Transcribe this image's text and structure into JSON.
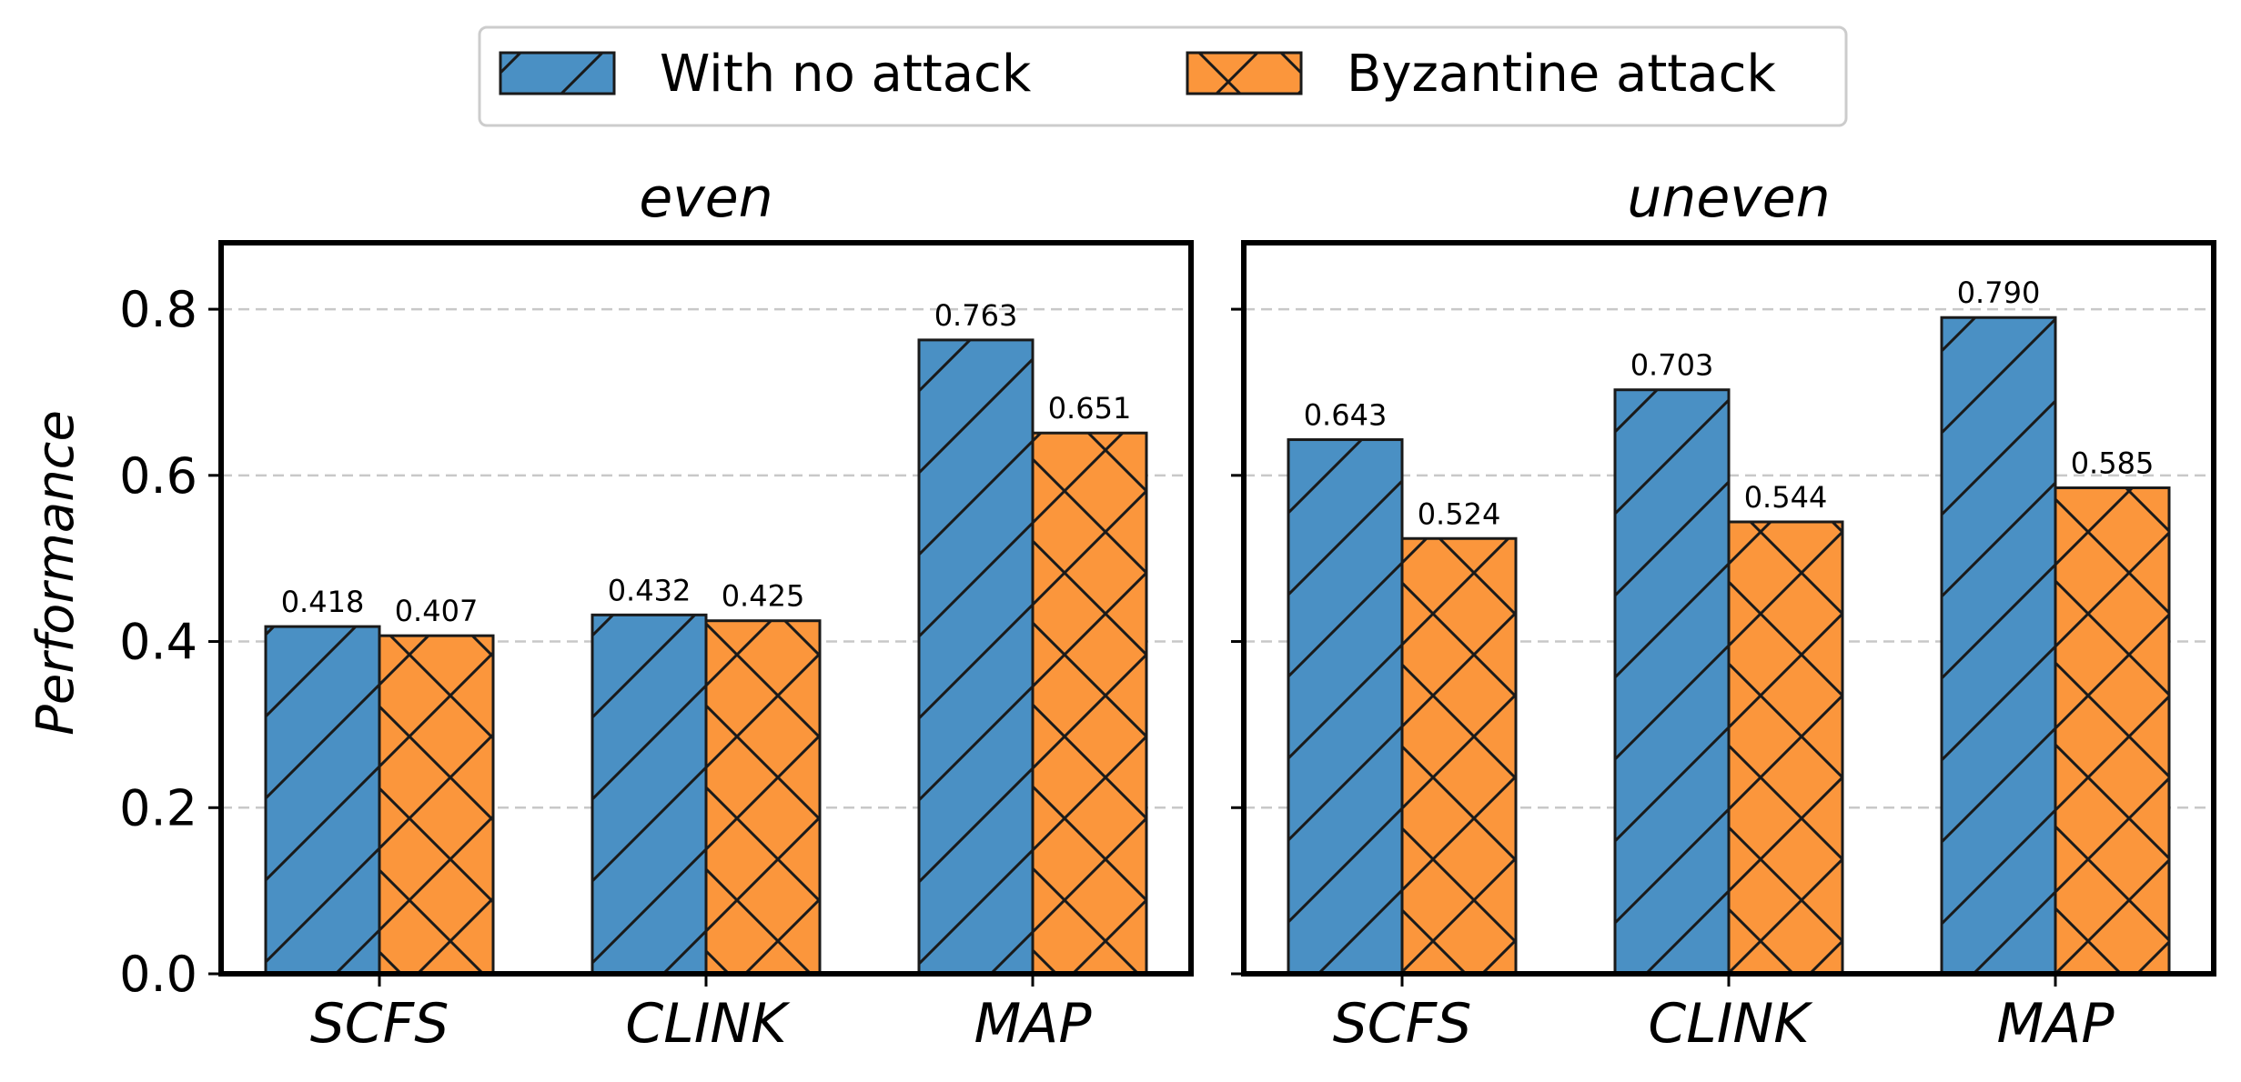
{
  "chart_data": {
    "type": "bar",
    "ylabel": "Performance",
    "ylim": [
      0,
      0.88
    ],
    "yticks": [
      "0.0",
      "0.2",
      "0.4",
      "0.6",
      "0.8"
    ],
    "grid": "horizontal dashed",
    "legend": {
      "placement": "top-center",
      "entries": [
        "With no attack",
        "Byzantine attack"
      ]
    },
    "colors": {
      "no_attack": "#4a90c4",
      "byzantine": "#fb963c"
    },
    "panels": [
      {
        "title": "even",
        "categories": [
          "SCFS",
          "CLINK",
          "MAP"
        ],
        "series": [
          {
            "name": "With no attack",
            "values": [
              0.418,
              0.432,
              0.763
            ],
            "labels": [
              "0.418",
              "0.432",
              "0.763"
            ]
          },
          {
            "name": "Byzantine attack",
            "values": [
              0.407,
              0.425,
              0.651
            ],
            "labels": [
              "0.407",
              "0.425",
              "0.651"
            ]
          }
        ]
      },
      {
        "title": "uneven",
        "categories": [
          "SCFS",
          "CLINK",
          "MAP"
        ],
        "series": [
          {
            "name": "With no attack",
            "values": [
              0.643,
              0.703,
              0.79
            ],
            "labels": [
              "0.643",
              "0.703",
              "0.790"
            ]
          },
          {
            "name": "Byzantine attack",
            "values": [
              0.524,
              0.544,
              0.585
            ],
            "labels": [
              "0.524",
              "0.544",
              "0.585"
            ]
          }
        ]
      }
    ]
  }
}
